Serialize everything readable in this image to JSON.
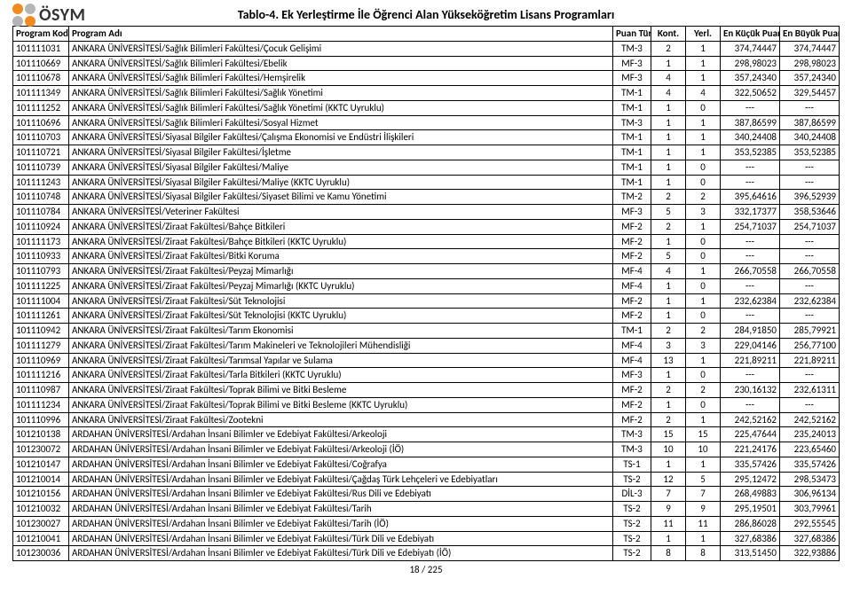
{
  "brand": {
    "name": "ÖSYM",
    "dot_colors": [
      "#f28b1c",
      "#b5b5b5",
      "#b5b5b5",
      "#f28b1c"
    ]
  },
  "title": "Tablo-4. Ek Yerleştirme İle Öğrenci Alan Yükseköğretim Lisans Programları",
  "header": {
    "kod": "Program Kodu",
    "ad": "Program Adı",
    "tur": "Puan Türü",
    "kont": "Kont.",
    "yerl": "Yerl.",
    "min": "En Küçük Puan",
    "max": "En Büyük Puan"
  },
  "footer": "18 / 225",
  "rows": [
    {
      "kod": "101111031",
      "ad": "ANKARA ÜNİVERSİTESİ/Sağlık Bilimleri Fakültesi/Çocuk Gelişimi",
      "tur": "TM-3",
      "kont": "2",
      "yerl": "1",
      "min": "374,74447",
      "max": "374,74447"
    },
    {
      "kod": "101110669",
      "ad": "ANKARA ÜNİVERSİTESİ/Sağlık Bilimleri Fakültesi/Ebelik",
      "tur": "MF-3",
      "kont": "1",
      "yerl": "1",
      "min": "298,98023",
      "max": "298,98023"
    },
    {
      "kod": "101110678",
      "ad": "ANKARA ÜNİVERSİTESİ/Sağlık Bilimleri Fakültesi/Hemşirelik",
      "tur": "MF-3",
      "kont": "4",
      "yerl": "1",
      "min": "357,24340",
      "max": "357,24340"
    },
    {
      "kod": "101111349",
      "ad": "ANKARA ÜNİVERSİTESİ/Sağlık Bilimleri Fakültesi/Sağlık Yönetimi",
      "tur": "TM-1",
      "kont": "4",
      "yerl": "4",
      "min": "322,50652",
      "max": "329,54457"
    },
    {
      "kod": "101111252",
      "ad": "ANKARA ÜNİVERSİTESİ/Sağlık Bilimleri Fakültesi/Sağlık Yönetimi  (KKTC Uyruklu)",
      "tur": "TM-1",
      "kont": "1",
      "yerl": "0",
      "min": "---",
      "max": "---"
    },
    {
      "kod": "101110696",
      "ad": "ANKARA ÜNİVERSİTESİ/Sağlık Bilimleri Fakültesi/Sosyal Hizmet",
      "tur": "TM-3",
      "kont": "1",
      "yerl": "1",
      "min": "387,86599",
      "max": "387,86599"
    },
    {
      "kod": "101110703",
      "ad": "ANKARA ÜNİVERSİTESİ/Siyasal Bilgiler Fakültesi/Çalışma Ekonomisi ve Endüstri İlişkileri",
      "tur": "TM-1",
      "kont": "1",
      "yerl": "1",
      "min": "340,24408",
      "max": "340,24408"
    },
    {
      "kod": "101110721",
      "ad": "ANKARA ÜNİVERSİTESİ/Siyasal Bilgiler Fakültesi/İşletme",
      "tur": "TM-1",
      "kont": "1",
      "yerl": "1",
      "min": "353,52385",
      "max": "353,52385"
    },
    {
      "kod": "101110739",
      "ad": "ANKARA ÜNİVERSİTESİ/Siyasal Bilgiler Fakültesi/Maliye",
      "tur": "TM-1",
      "kont": "1",
      "yerl": "0",
      "min": "---",
      "max": "---"
    },
    {
      "kod": "101111243",
      "ad": "ANKARA ÜNİVERSİTESİ/Siyasal Bilgiler Fakültesi/Maliye (KKTC Uyruklu)",
      "tur": "TM-1",
      "kont": "1",
      "yerl": "0",
      "min": "---",
      "max": "---"
    },
    {
      "kod": "101110748",
      "ad": "ANKARA ÜNİVERSİTESİ/Siyasal Bilgiler Fakültesi/Siyaset Bilimi ve Kamu Yönetimi",
      "tur": "TM-2",
      "kont": "2",
      "yerl": "2",
      "min": "395,64616",
      "max": "396,52939"
    },
    {
      "kod": "101110784",
      "ad": "ANKARA ÜNİVERSİTESİ/Veteriner Fakültesi",
      "tur": "MF-3",
      "kont": "5",
      "yerl": "3",
      "min": "332,17377",
      "max": "358,53646"
    },
    {
      "kod": "101110924",
      "ad": "ANKARA ÜNİVERSİTESİ/Ziraat Fakültesi/Bahçe Bitkileri",
      "tur": "MF-2",
      "kont": "2",
      "yerl": "1",
      "min": "254,71037",
      "max": "254,71037"
    },
    {
      "kod": "101111173",
      "ad": "ANKARA ÜNİVERSİTESİ/Ziraat Fakültesi/Bahçe Bitkileri (KKTC Uyruklu)",
      "tur": "MF-2",
      "kont": "1",
      "yerl": "0",
      "min": "---",
      "max": "---"
    },
    {
      "kod": "101110933",
      "ad": "ANKARA ÜNİVERSİTESİ/Ziraat Fakültesi/Bitki Koruma",
      "tur": "MF-2",
      "kont": "5",
      "yerl": "0",
      "min": "---",
      "max": "---"
    },
    {
      "kod": "101110793",
      "ad": "ANKARA ÜNİVERSİTESİ/Ziraat Fakültesi/Peyzaj Mimarlığı",
      "tur": "MF-4",
      "kont": "4",
      "yerl": "1",
      "min": "266,70558",
      "max": "266,70558"
    },
    {
      "kod": "101111225",
      "ad": "ANKARA ÜNİVERSİTESİ/Ziraat Fakültesi/Peyzaj Mimarlığı (KKTC Uyruklu)",
      "tur": "MF-4",
      "kont": "1",
      "yerl": "0",
      "min": "---",
      "max": "---"
    },
    {
      "kod": "101111004",
      "ad": "ANKARA ÜNİVERSİTESİ/Ziraat Fakültesi/Süt Teknolojisi",
      "tur": "MF-2",
      "kont": "1",
      "yerl": "1",
      "min": "232,62384",
      "max": "232,62384"
    },
    {
      "kod": "101111261",
      "ad": "ANKARA ÜNİVERSİTESİ/Ziraat Fakültesi/Süt Teknolojisi (KKTC Uyruklu)",
      "tur": "MF-2",
      "kont": "1",
      "yerl": "0",
      "min": "---",
      "max": "---"
    },
    {
      "kod": "101110942",
      "ad": "ANKARA ÜNİVERSİTESİ/Ziraat Fakültesi/Tarım Ekonomisi",
      "tur": "TM-1",
      "kont": "2",
      "yerl": "2",
      "min": "284,91850",
      "max": "285,79921"
    },
    {
      "kod": "101111279",
      "ad": "ANKARA ÜNİVERSİTESİ/Ziraat Fakültesi/Tarım Makineleri ve Teknolojileri Mühendisliği",
      "tur": "MF-4",
      "kont": "3",
      "yerl": "3",
      "min": "229,04146",
      "max": "256,77100"
    },
    {
      "kod": "101110969",
      "ad": "ANKARA ÜNİVERSİTESİ/Ziraat Fakültesi/Tarımsal Yapılar ve Sulama",
      "tur": "MF-4",
      "kont": "13",
      "yerl": "1",
      "min": "221,89211",
      "max": "221,89211"
    },
    {
      "kod": "101111216",
      "ad": "ANKARA ÜNİVERSİTESİ/Ziraat Fakültesi/Tarla Bitkileri (KKTC Uyruklu)",
      "tur": "MF-3",
      "kont": "1",
      "yerl": "0",
      "min": "---",
      "max": "---"
    },
    {
      "kod": "101110987",
      "ad": "ANKARA ÜNİVERSİTESİ/Ziraat Fakültesi/Toprak Bilimi ve Bitki Besleme",
      "tur": "MF-2",
      "kont": "2",
      "yerl": "2",
      "min": "230,16132",
      "max": "232,61311"
    },
    {
      "kod": "101111234",
      "ad": "ANKARA ÜNİVERSİTESİ/Ziraat Fakültesi/Toprak Bilimi ve Bitki Besleme (KKTC Uyruklu)",
      "tur": "MF-2",
      "kont": "1",
      "yerl": "0",
      "min": "---",
      "max": "---"
    },
    {
      "kod": "101110996",
      "ad": "ANKARA ÜNİVERSİTESİ/Ziraat Fakültesi/Zootekni",
      "tur": "MF-2",
      "kont": "2",
      "yerl": "1",
      "min": "242,52162",
      "max": "242,52162"
    },
    {
      "kod": "101210138",
      "ad": "ARDAHAN ÜNİVERSİTESİ/Ardahan İnsani Bilimler ve Edebiyat Fakültesi/Arkeoloji",
      "tur": "TM-3",
      "kont": "15",
      "yerl": "15",
      "min": "225,47644",
      "max": "235,24013"
    },
    {
      "kod": "101230072",
      "ad": "ARDAHAN ÜNİVERSİTESİ/Ardahan İnsani Bilimler ve Edebiyat Fakültesi/Arkeoloji (İÖ)",
      "tur": "TM-3",
      "kont": "10",
      "yerl": "10",
      "min": "221,24176",
      "max": "223,65460"
    },
    {
      "kod": "101210147",
      "ad": "ARDAHAN ÜNİVERSİTESİ/Ardahan İnsani Bilimler ve Edebiyat Fakültesi/Coğrafya",
      "tur": "TS-1",
      "kont": "1",
      "yerl": "1",
      "min": "335,57426",
      "max": "335,57426"
    },
    {
      "kod": "101210014",
      "ad": "ARDAHAN ÜNİVERSİTESİ/Ardahan İnsani Bilimler ve Edebiyat Fakültesi/Çağdaş Türk Lehçeleri ve Edebiyatları",
      "tur": "TS-2",
      "kont": "12",
      "yerl": "5",
      "min": "295,12472",
      "max": "298,53473"
    },
    {
      "kod": "101210156",
      "ad": "ARDAHAN ÜNİVERSİTESİ/Ardahan İnsani Bilimler ve Edebiyat Fakültesi/Rus Dili ve Edebiyatı",
      "tur": "DİL-3",
      "kont": "7",
      "yerl": "7",
      "min": "268,49883",
      "max": "306,96134"
    },
    {
      "kod": "101210032",
      "ad": "ARDAHAN ÜNİVERSİTESİ/Ardahan İnsani Bilimler ve Edebiyat Fakültesi/Tarih",
      "tur": "TS-2",
      "kont": "9",
      "yerl": "9",
      "min": "295,19501",
      "max": "303,79961"
    },
    {
      "kod": "101230027",
      "ad": "ARDAHAN ÜNİVERSİTESİ/Ardahan İnsani Bilimler ve Edebiyat Fakültesi/Tarih (İÖ)",
      "tur": "TS-2",
      "kont": "11",
      "yerl": "11",
      "min": "286,86028",
      "max": "292,55545"
    },
    {
      "kod": "101210041",
      "ad": "ARDAHAN ÜNİVERSİTESİ/Ardahan İnsani Bilimler ve Edebiyat Fakültesi/Türk Dili ve Edebiyatı",
      "tur": "TS-2",
      "kont": "1",
      "yerl": "1",
      "min": "327,68386",
      "max": "327,68386"
    },
    {
      "kod": "101230036",
      "ad": "ARDAHAN ÜNİVERSİTESİ/Ardahan İnsani Bilimler ve Edebiyat Fakültesi/Türk Dili ve Edebiyatı (İÖ)",
      "tur": "TS-2",
      "kont": "8",
      "yerl": "8",
      "min": "313,51450",
      "max": "322,93886"
    }
  ]
}
